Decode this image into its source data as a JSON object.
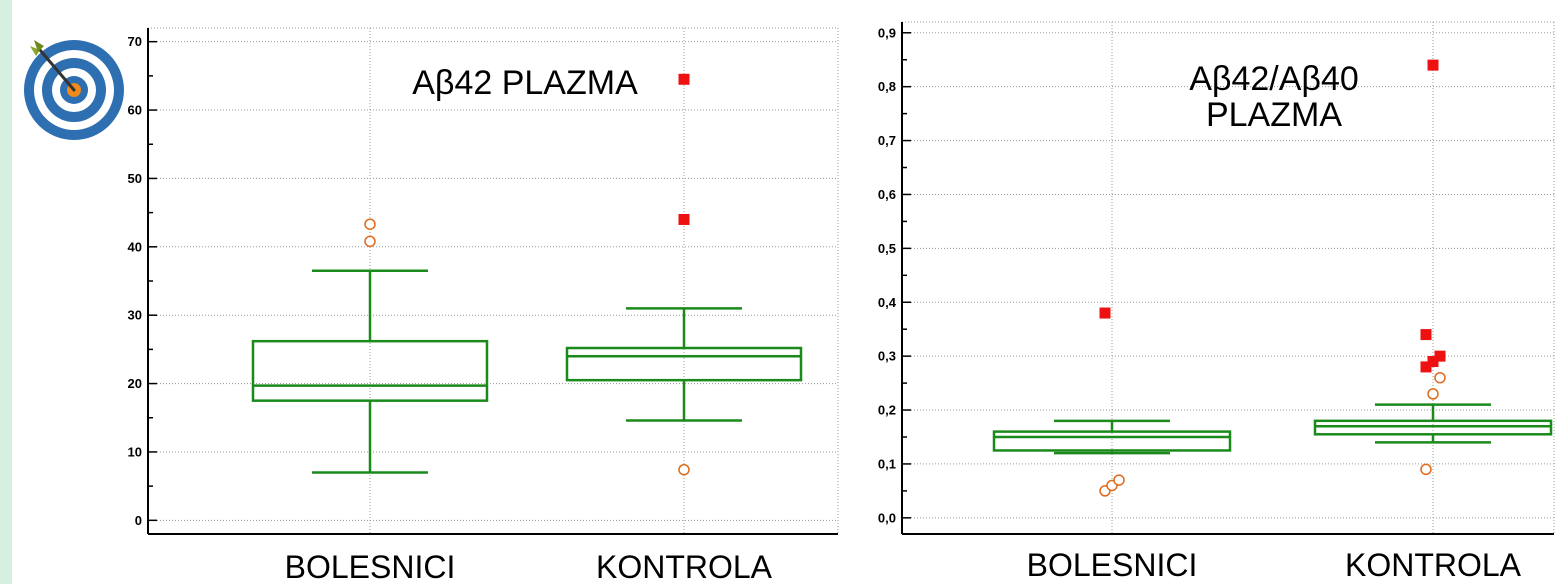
{
  "chart_data": [
    {
      "type": "box",
      "title": "Aβ42 PLAZMA",
      "ylim": [
        -2,
        72
      ],
      "yticks": [
        0,
        10,
        20,
        30,
        40,
        50,
        60,
        70
      ],
      "ytick_labels": [
        "0",
        "10",
        "20",
        "30",
        "40",
        "50",
        "60",
        "70"
      ],
      "grid": true,
      "categories": [
        "BOLESNICI",
        "KONTROLA"
      ],
      "boxes": [
        {
          "name": "BOLESNICI",
          "whisker_low": 7,
          "q1": 17.5,
          "median": 19.7,
          "q3": 26.2,
          "whisker_high": 36.5,
          "outliers": [
            40.8,
            43.3
          ],
          "far_outliers": []
        },
        {
          "name": "KONTROLA",
          "whisker_low": 14.6,
          "q1": 20.5,
          "median": 24,
          "q3": 25.2,
          "whisker_high": 31,
          "outliers": [
            7.4
          ],
          "far_outliers": [
            44,
            64.5
          ]
        }
      ],
      "colors": {
        "box": "#1a8a1a",
        "outlier": "#e06a1a",
        "far_outlier": "#ee1111"
      }
    },
    {
      "type": "box",
      "title": "Aβ42/Aβ40 PLAZMA",
      "title_lines": [
        "Aβ42/Aβ40",
        "PLAZMA"
      ],
      "ylim": [
        -0.03,
        0.92
      ],
      "yticks": [
        0,
        0.1,
        0.2,
        0.3,
        0.4,
        0.5,
        0.6,
        0.7,
        0.8,
        0.9
      ],
      "ytick_labels": [
        "0,0",
        "0,1",
        "0,2",
        "0,3",
        "0,4",
        "0,5",
        "0,6",
        "0,7",
        "0,8",
        "0,9"
      ],
      "grid": true,
      "categories": [
        "BOLESNICI",
        "KONTROLA"
      ],
      "boxes": [
        {
          "name": "BOLESNICI",
          "whisker_low": 0.12,
          "q1": 0.125,
          "median": 0.15,
          "q3": 0.16,
          "whisker_high": 0.18,
          "outliers": [
            0.05,
            0.06,
            0.07
          ],
          "far_outliers": [
            0.38
          ]
        },
        {
          "name": "KONTROLA",
          "whisker_low": 0.14,
          "q1": 0.155,
          "median": 0.17,
          "q3": 0.18,
          "whisker_high": 0.21,
          "outliers": [
            0.09,
            0.23,
            0.26
          ],
          "far_outliers": [
            0.28,
            0.29,
            0.3,
            0.34,
            0.84
          ]
        }
      ],
      "colors": {
        "box": "#1a8a1a",
        "outlier": "#e06a1a",
        "far_outlier": "#ee1111"
      }
    }
  ],
  "icons": {
    "corner": "target-arrow-icon"
  }
}
